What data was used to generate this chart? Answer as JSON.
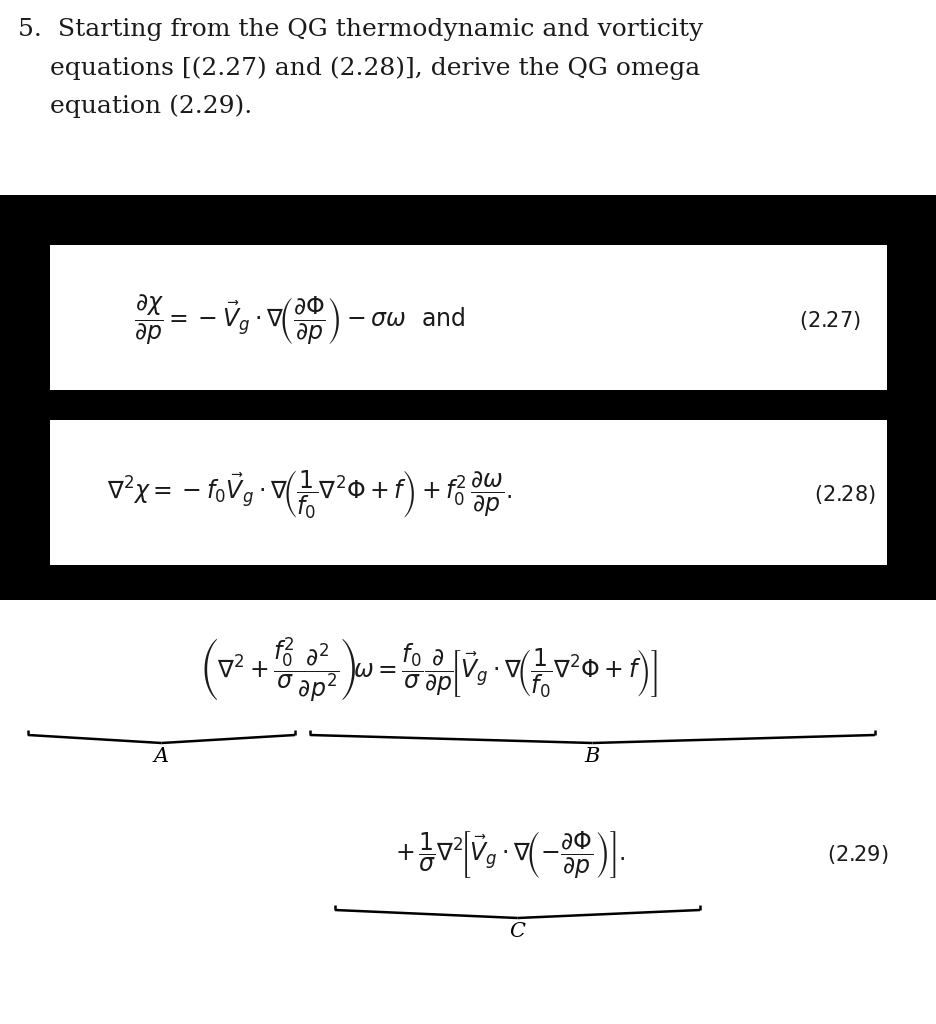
{
  "bg_color": "#000000",
  "white_color": "#ffffff",
  "text_color": "#1a1a1a",
  "label_A": "A",
  "label_B": "B",
  "label_C": "C",
  "question_line1": "5.  Starting from the QG thermodynamic and vorticity",
  "question_line2": "    equations [(2.27) and (2.28)], derive the QG omega",
  "question_line3": "    equation (2.29).",
  "ref227": "(2.27)",
  "ref228": "(2.28)",
  "ref229": "(2.29)",
  "fontsize_question": 18,
  "fontsize_eq": 16,
  "fontsize_ref": 14,
  "fontsize_label": 15
}
